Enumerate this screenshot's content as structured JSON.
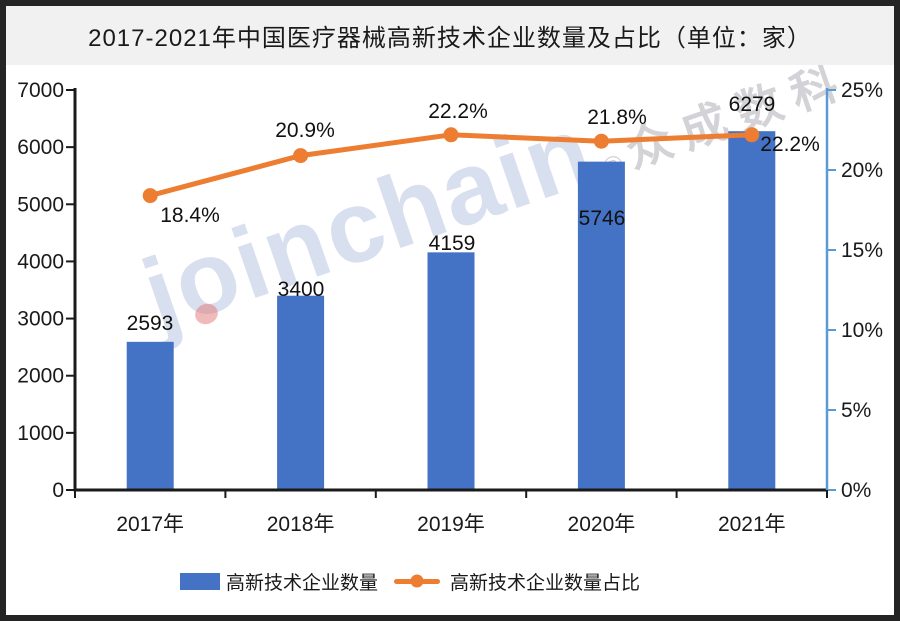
{
  "title": "2017-2021年中国医疗器械高新技术企业数量及占比（单位：家）",
  "watermark": {
    "latin": "joinchain",
    "reg": "®",
    "cjk": "众成数科"
  },
  "colors": {
    "bar": "#4472C4",
    "line": "#ED7D31",
    "right_axis": "#5B9BD5",
    "axis": "#1a1a1a",
    "title_band": "#f1f1f1",
    "border": "#242424"
  },
  "chart_data": {
    "type": "bar",
    "title": "2017-2021年中国医疗器械高新技术企业数量及占比（单位：家）",
    "categories": [
      "2017年",
      "2018年",
      "2019年",
      "2020年",
      "2021年"
    ],
    "series": [
      {
        "name": "高新技术企业数量",
        "type": "bar",
        "axis": "left",
        "color": "#4472C4",
        "values": [
          2593,
          3400,
          4159,
          5746,
          6279
        ],
        "labels": [
          "2593",
          "3400",
          "4159",
          "5746",
          "6279"
        ]
      },
      {
        "name": "高新技术企业数量占比",
        "type": "line",
        "axis": "right",
        "color": "#ED7D31",
        "values": [
          18.4,
          20.9,
          22.2,
          21.8,
          22.2
        ],
        "labels": [
          "18.4%",
          "20.9%",
          "22.2%",
          "21.8%",
          "22.2%"
        ]
      }
    ],
    "left_axis": {
      "min": 0,
      "max": 7000,
      "ticks": [
        "7000",
        "6000",
        "5000",
        "4000",
        "3000",
        "2000",
        "1000",
        "0"
      ]
    },
    "right_axis": {
      "min": 0,
      "max": 25,
      "ticks": [
        "25%",
        "20%",
        "15%",
        "10%",
        "5%",
        "0%"
      ]
    },
    "legend_position": "bottom",
    "grid": false
  }
}
